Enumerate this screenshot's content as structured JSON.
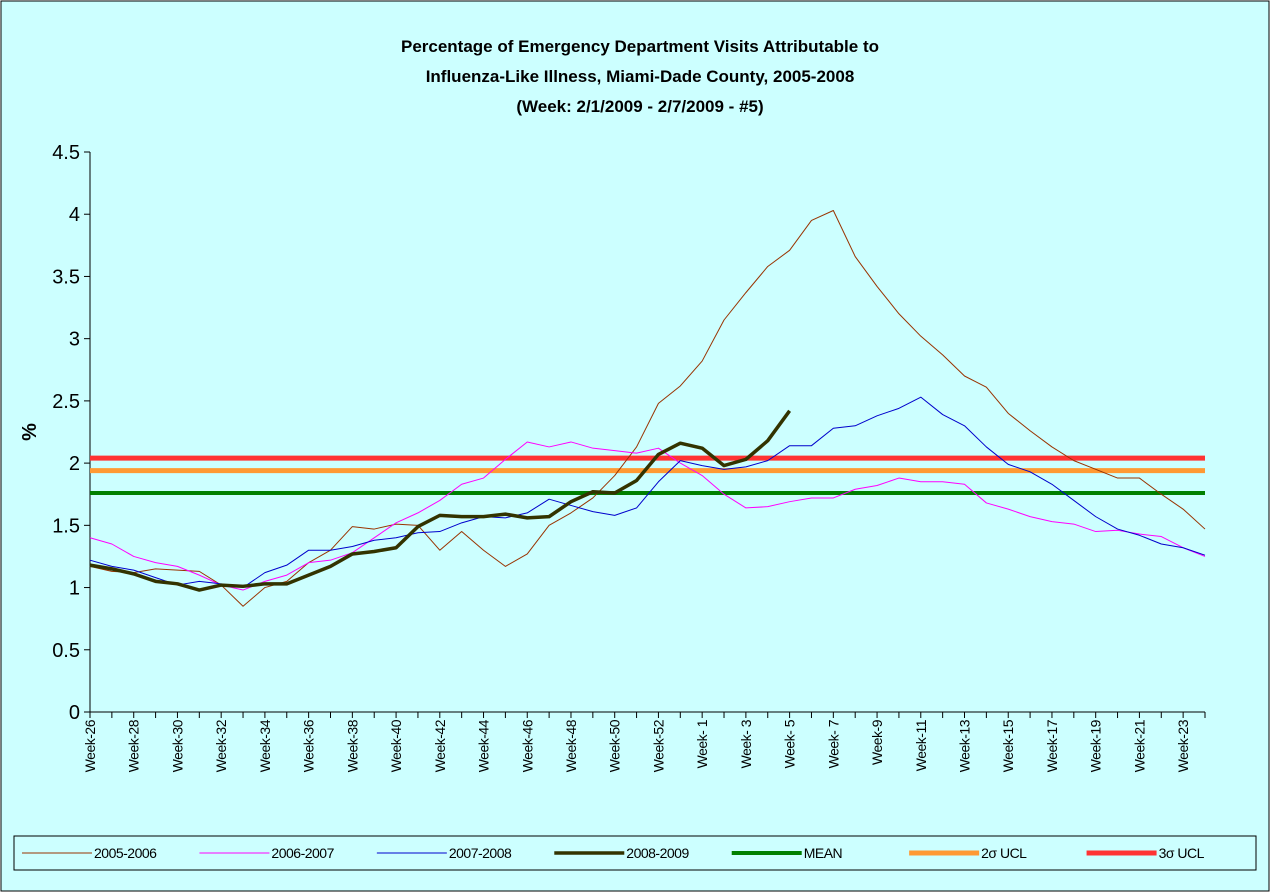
{
  "chart_data": {
    "type": "line",
    "title": [
      "Percentage of Emergency Department Visits Attributable to",
      "Influenza-Like Illness, Miami-Dade County, 2005-2008",
      "(Week: 2/1/2009 - 2/7/2009 - #5)"
    ],
    "y_label": "%",
    "categories": [
      "Week-26",
      null,
      "Week-28",
      null,
      "Week-30",
      null,
      "Week-32",
      null,
      "Week-34",
      null,
      "Week-36",
      null,
      "Week-38",
      null,
      "Week-40",
      null,
      "Week-42",
      null,
      "Week-44",
      null,
      "Week-46",
      null,
      "Week-48",
      null,
      "Week-50",
      null,
      "Week-52",
      null,
      "Week- 1",
      null,
      "Week- 3",
      null,
      "Week- 5",
      null,
      "Week- 7",
      null,
      "Week-9",
      null,
      "Week-11",
      null,
      "Week-13",
      null,
      "Week-15",
      null,
      "Week-17",
      null,
      "Week-19",
      null,
      "Week-21",
      null,
      "Week-23",
      null
    ],
    "ylim": [
      0,
      4.5
    ],
    "yticks": [
      0,
      0.5,
      1,
      1.5,
      2,
      2.5,
      3,
      3.5,
      4,
      4.5
    ],
    "series": [
      {
        "name": "2005-2006",
        "color": "#993300",
        "width": 1,
        "values": [
          1.17,
          1.13,
          1.12,
          1.15,
          1.14,
          1.13,
          1.02,
          0.85,
          1.0,
          1.05,
          1.2,
          1.3,
          1.49,
          1.47,
          1.51,
          1.5,
          1.3,
          1.45,
          1.3,
          1.17,
          1.27,
          1.5,
          1.6,
          1.72,
          1.9,
          2.13,
          2.48,
          2.62,
          2.82,
          3.15,
          3.37,
          3.58,
          3.71,
          3.95,
          4.03,
          3.66,
          3.42,
          3.2,
          3.02,
          2.87,
          2.7,
          2.61,
          2.4,
          2.26,
          2.13,
          2.02,
          1.95,
          1.88,
          1.88,
          1.75,
          1.63,
          1.47
        ]
      },
      {
        "name": "2006-2007",
        "color": "#ff00ff",
        "width": 1,
        "values": [
          1.4,
          1.35,
          1.25,
          1.2,
          1.17,
          1.1,
          1.02,
          0.98,
          1.05,
          1.1,
          1.2,
          1.22,
          1.28,
          1.4,
          1.52,
          1.6,
          1.7,
          1.83,
          1.88,
          2.03,
          2.17,
          2.13,
          2.17,
          2.12,
          2.1,
          2.08,
          2.12,
          2.0,
          1.9,
          1.75,
          1.64,
          1.65,
          1.69,
          1.72,
          1.72,
          1.79,
          1.82,
          1.88,
          1.85,
          1.85,
          1.83,
          1.68,
          1.63,
          1.57,
          1.53,
          1.51,
          1.45,
          1.46,
          1.43,
          1.41,
          1.32,
          1.25
        ]
      },
      {
        "name": "2007-2008",
        "color": "#0000cc",
        "width": 1,
        "values": [
          1.22,
          1.17,
          1.14,
          1.08,
          1.02,
          1.05,
          1.03,
          1.0,
          1.12,
          1.18,
          1.3,
          1.3,
          1.33,
          1.38,
          1.4,
          1.44,
          1.45,
          1.52,
          1.57,
          1.56,
          1.6,
          1.71,
          1.66,
          1.61,
          1.58,
          1.64,
          1.85,
          2.02,
          1.98,
          1.95,
          1.97,
          2.02,
          2.14,
          2.14,
          2.28,
          2.3,
          2.38,
          2.44,
          2.53,
          2.39,
          2.3,
          2.13,
          1.99,
          1.93,
          1.83,
          1.7,
          1.57,
          1.47,
          1.42,
          1.35,
          1.32,
          1.26
        ]
      },
      {
        "name": "2008-2009",
        "color": "#333300",
        "width": 3.5,
        "values": [
          1.18,
          1.15,
          1.11,
          1.05,
          1.03,
          0.98,
          1.02,
          1.01,
          1.03,
          1.03,
          1.1,
          1.17,
          1.27,
          1.29,
          1.32,
          1.49,
          1.58,
          1.57,
          1.57,
          1.59,
          1.56,
          1.57,
          1.69,
          1.77,
          1.76,
          1.86,
          2.07,
          2.16,
          2.12,
          1.98,
          2.03,
          2.18,
          2.42,
          null,
          null,
          null,
          null,
          null,
          null,
          null,
          null,
          null,
          null,
          null,
          null,
          null,
          null,
          null,
          null,
          null,
          null,
          null
        ]
      },
      {
        "name": "MEAN",
        "color": "#008000",
        "width": 4,
        "value": 1.76
      },
      {
        "name": "2σ UCL",
        "color": "#ff9933",
        "width": 5,
        "value": 1.94
      },
      {
        "name": "3σ UCL",
        "color": "#ff3333",
        "width": 5,
        "value": 2.04
      }
    ]
  }
}
